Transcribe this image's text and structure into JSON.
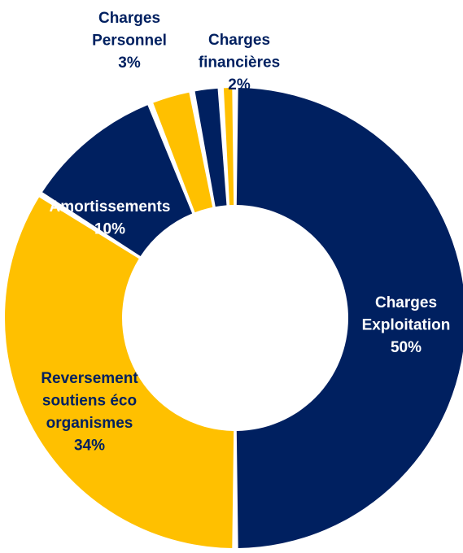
{
  "chart_data": {
    "type": "pie",
    "variant": "donut",
    "title": "",
    "legend": "none",
    "slices": [
      {
        "lines": [
          "Charges",
          "Exploitation",
          "50%"
        ],
        "value": 50,
        "color": "#002060",
        "label_color": "#ffffff"
      },
      {
        "lines": [
          "Reversement",
          "soutiens éco",
          "organismes",
          "34%"
        ],
        "value": 34,
        "color": "#FFC000",
        "label_color": "#002060"
      },
      {
        "lines": [
          "Amortissements",
          "10%"
        ],
        "value": 10,
        "color": "#002060",
        "label_color": "#ffffff"
      },
      {
        "lines": [
          "Charges",
          "Personnel",
          "3%"
        ],
        "value": 3,
        "color": "#FFC000",
        "label_color": "#002060"
      },
      {
        "lines": [
          "Charges",
          "financières",
          "2%"
        ],
        "value": 2,
        "color": "#002060",
        "label_color": "#002060"
      },
      {
        "lines": [],
        "value": 1,
        "color": "#FFC000",
        "label_color": "#002060"
      }
    ]
  }
}
